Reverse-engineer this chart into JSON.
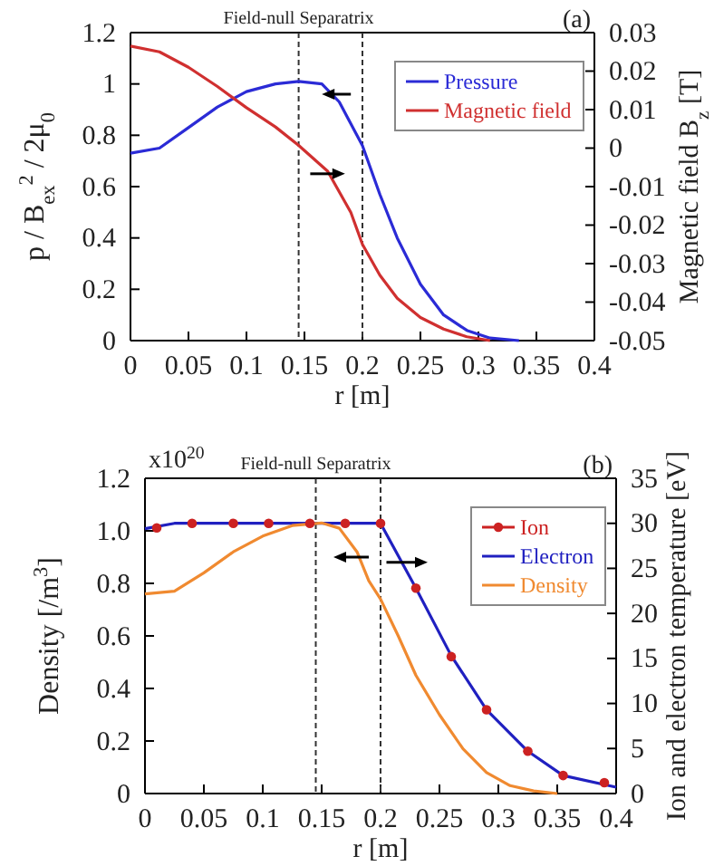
{
  "chart_data": [
    {
      "type": "line",
      "title": "Field-null Separatrix",
      "xlabel": "r [m]",
      "ylabel": "p / B$_{ex}$$^{2}$ / 2μ$_{0}$",
      "y2label": "Magnetic field B$_{z}$ [T]",
      "annotations": [
        "(a)"
      ],
      "xlim": [
        0,
        0.4
      ],
      "xticks": [
        0,
        0.05,
        0.1,
        0.15,
        0.2,
        0.25,
        0.3,
        0.35,
        0.4
      ],
      "ylim": [
        0,
        1.2
      ],
      "yticks": [
        0,
        0.2,
        0.4,
        0.6,
        0.8,
        1,
        1.2
      ],
      "y2lim": [
        -0.05,
        0.03
      ],
      "y2ticks": [
        -0.05,
        -0.04,
        -0.03,
        -0.02,
        -0.01,
        0,
        0.01,
        0.02,
        0.03
      ],
      "legend": "top right",
      "marker": "none",
      "line_style": "solid",
      "ref_lines": [
        {
          "axis": "x",
          "value": 0.145,
          "line_style": "dashed",
          "color": "#333333"
        },
        {
          "axis": "x",
          "value": 0.2,
          "line_style": "dashed",
          "color": "#333333"
        }
      ],
      "series": [
        {
          "name": "Pressure",
          "color": "#2b2bd6",
          "x": [
            0,
            0.025,
            0.05,
            0.075,
            0.1,
            0.125,
            0.145,
            0.165,
            0.18,
            0.2,
            0.215,
            0.23,
            0.25,
            0.27,
            0.29,
            0.31,
            0.335
          ],
          "values": [
            0.73,
            0.75,
            0.83,
            0.91,
            0.97,
            1.0,
            1.01,
            1.0,
            0.93,
            0.76,
            0.57,
            0.4,
            0.22,
            0.1,
            0.04,
            0.01,
            0
          ]
        },
        {
          "name": "Magnetic field",
          "color": "#d03030",
          "axis": "y2",
          "x": [
            0,
            0.025,
            0.05,
            0.075,
            0.1,
            0.125,
            0.145,
            0.17,
            0.19,
            0.2,
            0.215,
            0.23,
            0.25,
            0.27,
            0.29,
            0.31
          ],
          "values": [
            0.0265,
            0.025,
            0.021,
            0.016,
            0.0105,
            0.0055,
            0.0007,
            -0.006,
            -0.0167,
            -0.025,
            -0.033,
            -0.039,
            -0.044,
            -0.047,
            -0.049,
            -0.05
          ]
        }
      ]
    },
    {
      "type": "line",
      "title": "Field-null Separatrix",
      "xlabel": "r [m]",
      "ylabel": "Density [/m$^{3}$]",
      "y2label": "Ion and electron temperature [eV]",
      "annotations": [
        "(b)",
        "x10$^{20}$"
      ],
      "xlim": [
        0,
        0.4
      ],
      "xticks": [
        0,
        0.05,
        0.1,
        0.15,
        0.2,
        0.25,
        0.3,
        0.35,
        0.4
      ],
      "ylim": [
        0,
        1.2
      ],
      "yticks": [
        0,
        0.2,
        0.4,
        0.6,
        0.8,
        {
          "value": 1,
          "label": "1.0"
        },
        1.2
      ],
      "y2lim": [
        0,
        35
      ],
      "y2ticks": [
        0,
        5,
        10,
        15,
        20,
        25,
        30,
        35
      ],
      "legend": "top right",
      "line_style": "solid",
      "ref_lines": [
        {
          "axis": "x",
          "value": 0.145,
          "line_style": "dashed",
          "color": "#333333"
        },
        {
          "axis": "x",
          "value": 0.2,
          "line_style": "dashed",
          "color": "#333333"
        }
      ],
      "series": [
        {
          "name": "Ion",
          "type": "scatter",
          "marker": "circle",
          "color": "#cc2222",
          "axis": "y2",
          "x": [
            0.01,
            0.04,
            0.075,
            0.105,
            0.14,
            0.17,
            0.2,
            0.23,
            0.26,
            0.29,
            0.325,
            0.355,
            0.39
          ],
          "values": [
            29.5,
            30,
            30,
            30,
            30,
            30,
            30,
            22.8,
            15.2,
            9.3,
            4.7,
            2.0,
            1.2
          ]
        },
        {
          "name": "Electron",
          "color": "#2020c0",
          "axis": "y2",
          "x": [
            0,
            0.025,
            0.2,
            0.23,
            0.26,
            0.29,
            0.325,
            0.355,
            0.4
          ],
          "values": [
            29.4,
            30,
            30,
            22.8,
            15.3,
            9.3,
            4.7,
            2.0,
            0.7
          ]
        },
        {
          "name": "Density",
          "color": "#f08a30",
          "x": [
            0,
            0.025,
            0.05,
            0.075,
            0.1,
            0.125,
            0.15,
            0.165,
            0.18,
            0.19,
            0.2,
            0.215,
            0.23,
            0.25,
            0.27,
            0.29,
            0.31,
            0.33,
            0.35
          ],
          "values": [
            0.76,
            0.77,
            0.84,
            0.92,
            0.98,
            1.02,
            1.03,
            1.01,
            0.92,
            0.81,
            0.74,
            0.6,
            0.45,
            0.3,
            0.17,
            0.08,
            0.03,
            0.01,
            0
          ]
        }
      ]
    }
  ]
}
